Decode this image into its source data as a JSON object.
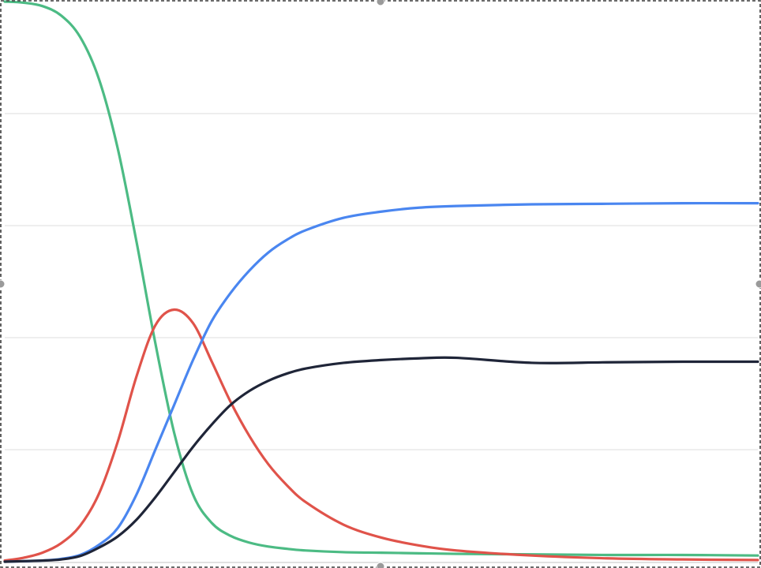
{
  "chart_data": {
    "type": "line",
    "title": "",
    "xlabel": "",
    "ylabel": "",
    "xlim": [
      0,
      100
    ],
    "ylim": [
      0,
      1
    ],
    "grid": {
      "horizontal": true,
      "vertical": false,
      "gridlines_y": [
        0.2,
        0.4,
        0.6,
        0.8
      ]
    },
    "legend": "none",
    "selection_frame": true,
    "series": [
      {
        "color": "#4cbb84",
        "x": [
          0,
          2.5,
          5,
          7.5,
          10,
          12.5,
          15,
          17.5,
          20,
          22.5,
          25,
          27.5,
          30,
          32.5,
          35,
          37.5,
          40,
          45,
          50,
          55,
          60,
          70,
          80,
          90,
          100
        ],
        "y": [
          1.0,
          0.998,
          0.992,
          0.975,
          0.937,
          0.862,
          0.738,
          0.571,
          0.39,
          0.23,
          0.12,
          0.069,
          0.046,
          0.034,
          0.027,
          0.023,
          0.02,
          0.017,
          0.016,
          0.015,
          0.014,
          0.013,
          0.012,
          0.012,
          0.011
        ]
      },
      {
        "color": "#e0534a",
        "x": [
          0,
          2.5,
          5,
          7.5,
          10,
          12.5,
          15,
          17.5,
          20,
          22.5,
          25,
          27.5,
          30,
          32.5,
          35,
          37.5,
          40,
          45,
          50,
          55,
          60,
          70,
          80,
          90,
          100
        ],
        "y": [
          0.002,
          0.007,
          0.016,
          0.033,
          0.064,
          0.121,
          0.214,
          0.331,
          0.422,
          0.45,
          0.426,
          0.357,
          0.285,
          0.224,
          0.174,
          0.136,
          0.106,
          0.066,
          0.043,
          0.029,
          0.02,
          0.011,
          0.006,
          0.004,
          0.003
        ]
      },
      {
        "color": "#4a86f0",
        "x": [
          0,
          2.5,
          5,
          7.5,
          10,
          12.5,
          15,
          17.5,
          20,
          22.5,
          25,
          27.5,
          30,
          32.5,
          35,
          37.5,
          40,
          45,
          50,
          55,
          60,
          70,
          80,
          90,
          100
        ],
        "y": [
          0.0,
          0.001,
          0.002,
          0.005,
          0.012,
          0.03,
          0.06,
          0.12,
          0.2,
          0.28,
          0.36,
          0.43,
          0.48,
          0.52,
          0.552,
          0.575,
          0.592,
          0.614,
          0.625,
          0.632,
          0.635,
          0.638,
          0.639,
          0.64,
          0.64
        ]
      },
      {
        "color": "#1f2538",
        "x": [
          0,
          2.5,
          5,
          7.5,
          10,
          12.5,
          15,
          17.5,
          20,
          22.5,
          25,
          27.5,
          30,
          32.5,
          35,
          37.5,
          40,
          45,
          50,
          55,
          60,
          70,
          80,
          90,
          100
        ],
        "y": [
          0.0,
          0.001,
          0.002,
          0.004,
          0.01,
          0.025,
          0.045,
          0.075,
          0.115,
          0.16,
          0.205,
          0.245,
          0.28,
          0.305,
          0.323,
          0.336,
          0.345,
          0.355,
          0.36,
          0.363,
          0.364,
          0.355,
          0.356,
          0.357,
          0.357
        ]
      }
    ]
  }
}
